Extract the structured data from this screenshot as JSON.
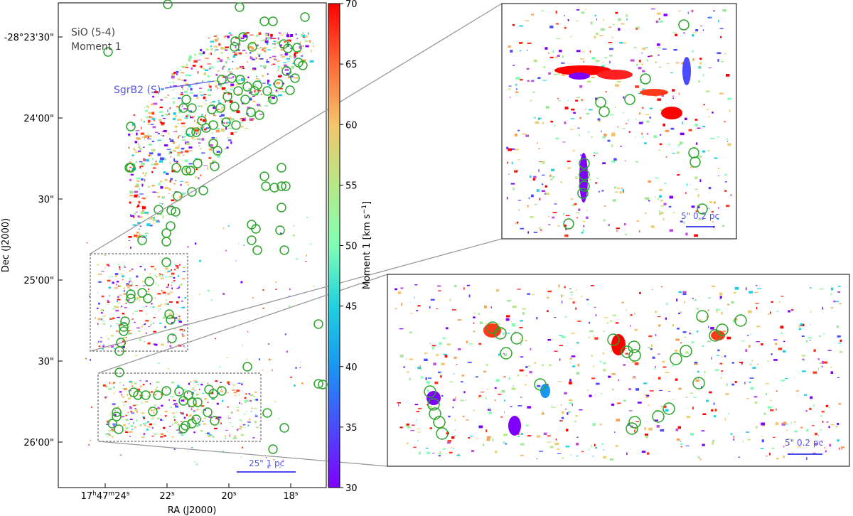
{
  "figure": {
    "title_line1": "SiO (5-4)",
    "title_line2": "Moment 1",
    "source_label": "SgrB2 (S)",
    "xlabel": "RA (J2000)",
    "ylabel": "Dec (J2000)",
    "ra_ticks": {
      "first": {
        "h": "17",
        "hs": "h",
        "m": "47",
        "ms": "m",
        "s": "24",
        "ss": "s"
      },
      "others": [
        {
          "v": "22",
          "s": "s"
        },
        {
          "v": "20",
          "s": "s"
        },
        {
          "v": "18",
          "s": "s"
        }
      ]
    },
    "dec_ticks": [
      "-28°23'30\"",
      "24'00\"",
      "30\"",
      "25'00\"",
      "30\"",
      "26'00\""
    ],
    "main_scalebar": "25\" 1 pc",
    "inset_top_scalebar": "5\" 0.2 pc",
    "inset_bottom_scalebar": "5\" 0.2 pc"
  },
  "colorbar": {
    "label_main": "Moment 1 [km s",
    "label_exp": "−1",
    "label_end": "]",
    "min": 30,
    "max": 70,
    "ticks": [
      "30",
      "35",
      "40",
      "45",
      "50",
      "55",
      "60",
      "65",
      "70"
    ]
  },
  "colors": {
    "circle": "#2aa52a",
    "box": "#888888",
    "scalebar": "#4a4ae8"
  }
}
